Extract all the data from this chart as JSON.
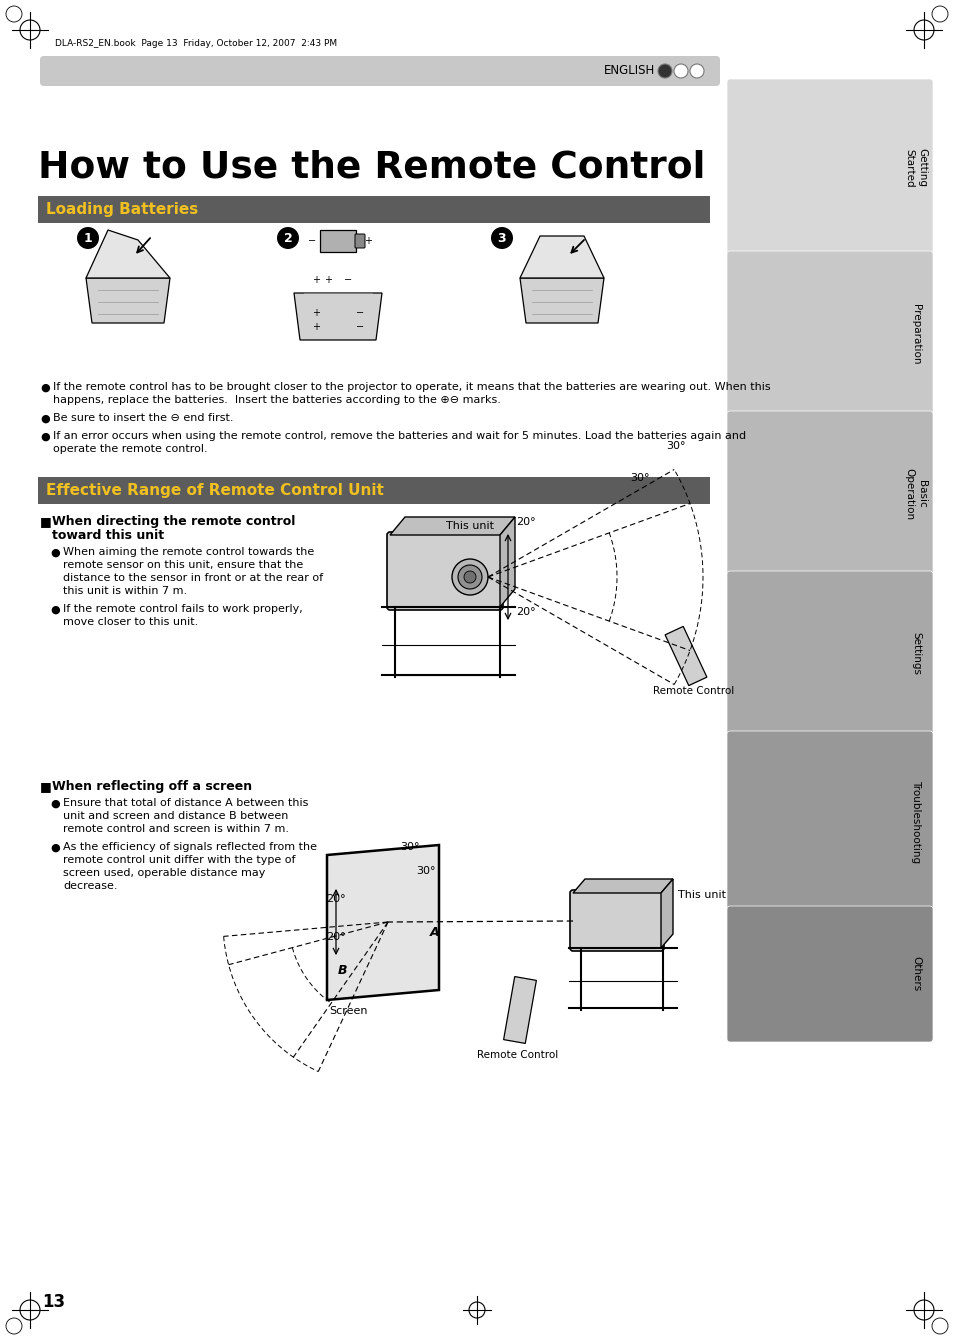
{
  "title": "How to Use the Remote Control",
  "section1": "Loading Batteries",
  "section2": "Effective Range of Remote Control Unit",
  "subsection1_line1": "When directing the remote control",
  "subsection1_line2": "toward this unit",
  "subsection2": "When reflecting off a screen",
  "bullet1a_lines": [
    "When aiming the remote control towards the",
    "remote sensor on this unit, ensure that the",
    "distance to the sensor in front or at the rear of",
    "this unit is within 7 m."
  ],
  "bullet1b_lines": [
    "If the remote control fails to work properly,",
    "move closer to this unit."
  ],
  "bullet2a_lines": [
    "Ensure that total of distance A between this",
    "unit and screen and distance B between",
    "remote control and screen is within 7 m."
  ],
  "bullet2b_lines": [
    "As the efficiency of signals reflected from the",
    "remote control unit differ with the type of",
    "screen used, operable distance may",
    "decrease."
  ],
  "note1_lines": [
    "If the remote control has to be brought closer to the projector to operate, it means that the batteries are wearing out. When this",
    "happens, replace the batteries.  Insert the batteries according to the ⊕⊖ marks."
  ],
  "note2": "Be sure to insert the ⊖ end first.",
  "note3_lines": [
    "If an error occurs when using the remote control, remove the batteries and wait for 5 minutes. Load the batteries again and",
    "operate the remote control."
  ],
  "english_label": "ENGLISH",
  "page_number": "13",
  "file_label": "DLA-RS2_EN.book  Page 13  Friday, October 12, 2007  2:43 PM",
  "this_unit_label1": "This unit",
  "this_unit_label2": "This unit",
  "remote_control_label1": "Remote Control",
  "remote_control_label2": "Remote Control",
  "screen_label": "Screen",
  "tab_labels": [
    "Getting Started",
    "Preparation",
    "Basic Operation",
    "Settings",
    "Troubleshooting",
    "Others"
  ],
  "section_bg": "#5c5c5c",
  "section_text_color": "#f0c020",
  "header_bar_color": "#c8c8c8"
}
